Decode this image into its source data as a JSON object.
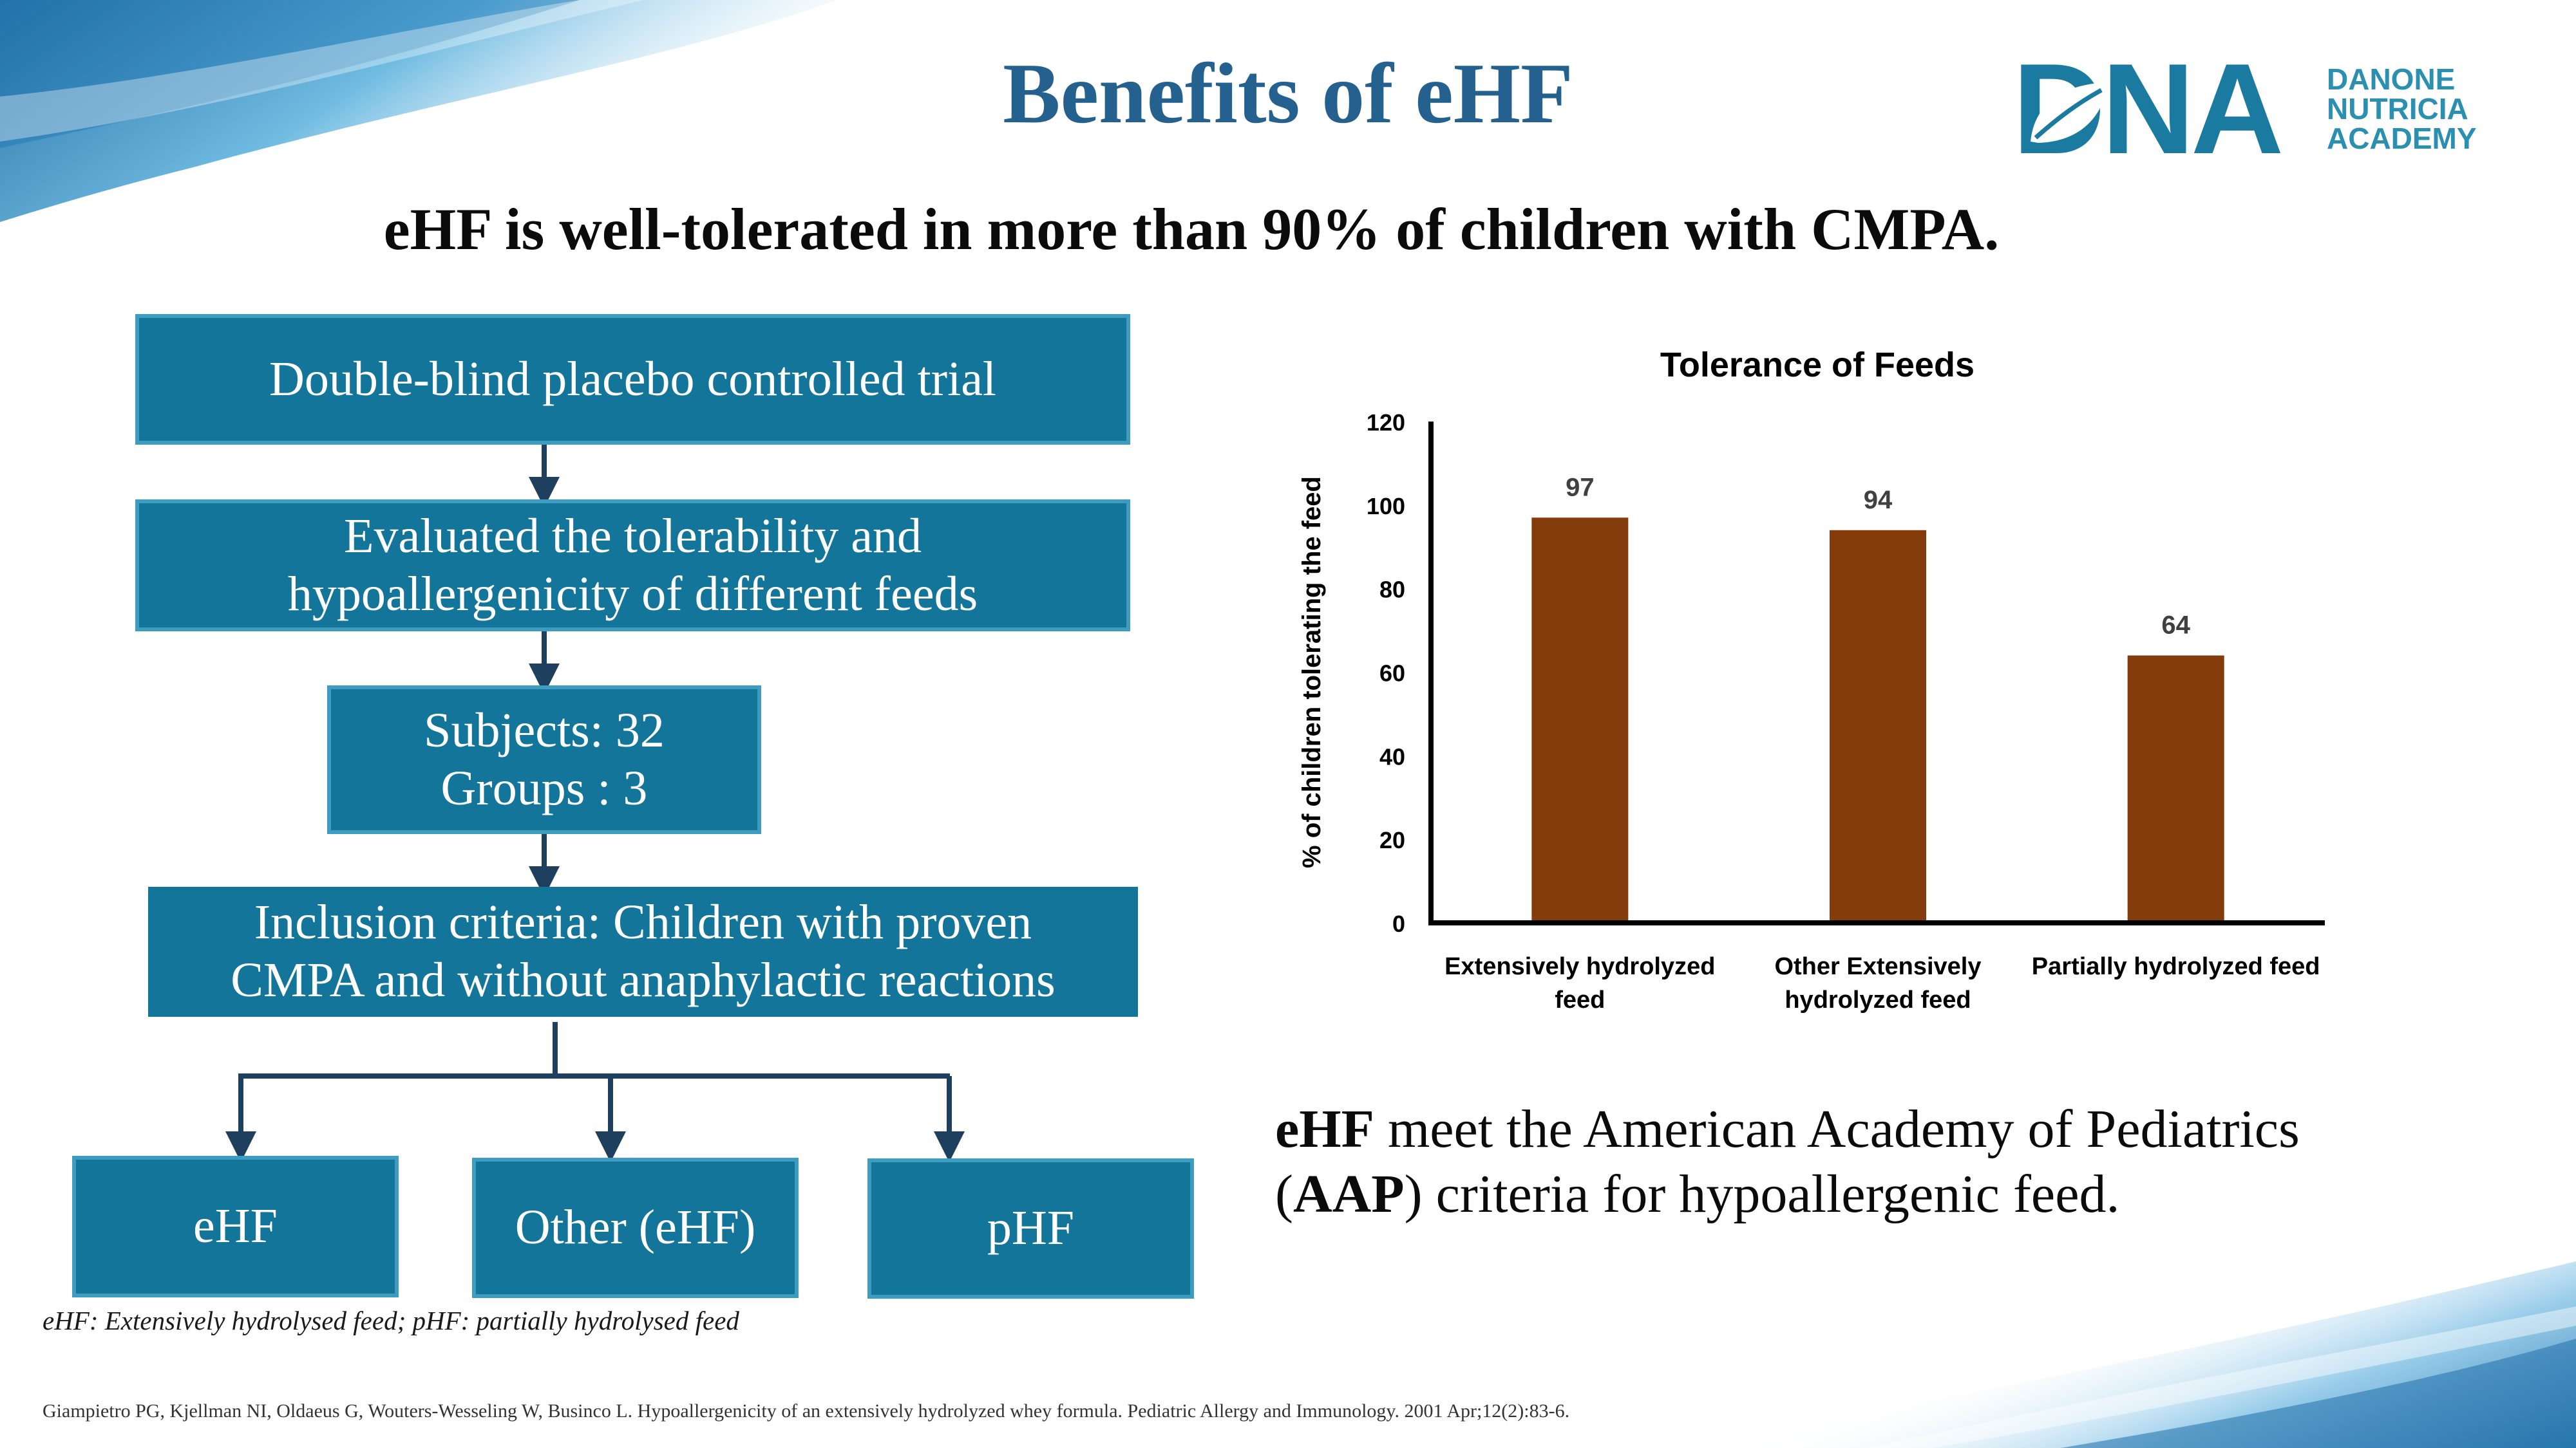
{
  "title": "Benefits of eHF",
  "subtitle": "eHF is well-tolerated in more than 90% of children with CMPA.",
  "logo": {
    "mark": "DNA",
    "line1": "DANONE",
    "line2": "NUTRICIA",
    "line3": "ACADEMY",
    "icon": "leaf-icon"
  },
  "flow": {
    "trial": "Double-blind placebo controlled trial",
    "evaluated_line1": "Evaluated the tolerability and",
    "evaluated_line2": "hypoallergenicity of different feeds",
    "subjects": "Subjects: 32",
    "groups": "Groups : 3",
    "inclusion_line1": "Inclusion criteria: Children with proven",
    "inclusion_line2": "CMPA and without anaphylactic reactions",
    "group_ehf": "eHF",
    "group_other": "Other (eHF)",
    "group_phf": "pHF"
  },
  "footnote": "eHF: Extensively hydrolysed feed; pHF: partially hydrolysed feed",
  "reference": "Giampietro PG, Kjellman NI, Oldaeus G, Wouters-Wesseling W, Businco L. Hypoallergenicity of an extensively hydrolyzed whey formula. Pediatric Allergy and Immunology. 2001 Apr;12(2):83-6.",
  "callout": {
    "ehf": "eHF",
    "text1": " meet the American Academy of Pediatrics (",
    "aap": "AAP",
    "text2": ") criteria for hypoallergenic feed."
  },
  "chart_data": {
    "type": "bar",
    "title": "Tolerance of Feeds",
    "ylabel": "% of children tolerating the feed",
    "xlabel": "",
    "ylim": [
      0,
      120
    ],
    "yticks": [
      0,
      20,
      40,
      60,
      80,
      100,
      120
    ],
    "categories": [
      [
        "Extensively hydrolyzed",
        "feed"
      ],
      [
        "Other Extensively",
        "hydrolyzed feed"
      ],
      [
        "Partially hydrolyzed feed"
      ]
    ],
    "values": [
      97,
      94,
      64
    ],
    "bar_color": "#843c0c",
    "grid": false,
    "legend": "none"
  },
  "colors": {
    "title": "#24618f",
    "box_fill": "#137599",
    "box_border": "#3d9cbf",
    "arrow": "#1f3f5e",
    "logo": "#1a7aa0"
  }
}
